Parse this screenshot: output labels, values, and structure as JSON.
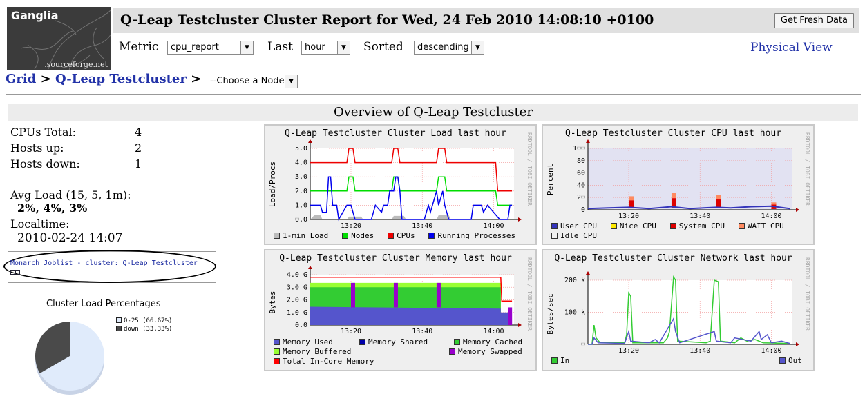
{
  "logo": {
    "name": "Ganglia",
    "sub": ".sourceforge.net"
  },
  "header": {
    "title": "Q-Leap Testcluster Cluster Report for Wed, 24 Feb 2010 14:08:10 +0100",
    "fresh_button": "Get Fresh Data"
  },
  "controls": {
    "metric_label": "Metric",
    "metric_value": "cpu_report",
    "last_label": "Last",
    "last_value": "hour",
    "sorted_label": "Sorted",
    "sorted_value": "descending",
    "physical_view": "Physical View"
  },
  "breadcrumb": {
    "grid": "Grid",
    "sep1": ">",
    "cluster": "Q-Leap Testcluster",
    "sep2": ">",
    "node_select": "--Choose a Node"
  },
  "overview": {
    "title": "Overview of Q-Leap Testcluster"
  },
  "stats": {
    "cpus_label": "CPUs Total:",
    "cpus_value": "4",
    "hosts_up_label": "Hosts up:",
    "hosts_up_value": "2",
    "hosts_down_label": "Hosts down:",
    "hosts_down_value": "1",
    "avg_load_label": "Avg Load (15, 5, 1m):",
    "avg_load_value": "2%, 4%, 3%",
    "localtime_label": "Localtime:",
    "localtime_value": "2010-02-24 14:07"
  },
  "joblist": {
    "text": "Monarch Joblist - cluster: Q-Leap Testcluster"
  },
  "cluster_load": {
    "title": "Cluster Load Percentages",
    "slices": [
      {
        "label": "0-25 (66.67%)",
        "percent": 66.67,
        "color": "#e0ebfb"
      },
      {
        "label": "down (33.33%)",
        "percent": 33.33,
        "color": "#4a4a4a"
      }
    ]
  },
  "rrd_credit": "RRDTOOL / TOBI OETIKER",
  "graphs": {
    "load": {
      "title": "Q-Leap Testcluster Cluster Load last hour",
      "ylabel": "Load/Procs",
      "yticks": [
        "5.0",
        "4.0",
        "3.0",
        "2.0",
        "1.0",
        "0.0"
      ],
      "xticks": [
        "13:20",
        "13:40",
        "14:00"
      ],
      "legend": [
        {
          "label": "1-min Load",
          "color": "#bbbbbb"
        },
        {
          "label": "Nodes",
          "color": "#00dd00"
        },
        {
          "label": "CPUs",
          "color": "#ee0000"
        },
        {
          "label": "Running Processes",
          "color": "#0000ee"
        }
      ]
    },
    "cpu": {
      "title": "Q-Leap Testcluster Cluster CPU last hour",
      "ylabel": "Percent",
      "yticks": [
        "100",
        "80",
        "60",
        "40",
        "20",
        "0"
      ],
      "xticks": [
        "13:20",
        "13:40",
        "14:00"
      ],
      "legend": [
        {
          "label": "User CPU",
          "color": "#3333bb"
        },
        {
          "label": "Nice CPU",
          "color": "#ffea00"
        },
        {
          "label": "System CPU",
          "color": "#dd0000"
        },
        {
          "label": "WAIT CPU",
          "color": "#ff8a60"
        },
        {
          "label": "Idle CPU",
          "color": "#e2e2f2"
        }
      ]
    },
    "memory": {
      "title": "Q-Leap Testcluster Cluster Memory last hour",
      "ylabel": "Bytes",
      "yticks": [
        "4.0 G",
        "3.0 G",
        "2.0 G",
        "1.0 G",
        "0.0"
      ],
      "xticks": [
        "13:20",
        "13:40",
        "14:00"
      ],
      "legend": [
        {
          "label": "Memory Used",
          "color": "#5555cc"
        },
        {
          "label": "Memory Shared",
          "color": "#0000aa"
        },
        {
          "label": "Memory Cached",
          "color": "#33cc33"
        },
        {
          "label": "Memory Buffered",
          "color": "#99ff33"
        },
        {
          "label": "Memory Swapped",
          "color": "#9900cc"
        },
        {
          "label": "Total In-Core Memory",
          "color": "#ff0000"
        }
      ]
    },
    "network": {
      "title": "Q-Leap Testcluster Cluster Network last hour",
      "ylabel": "Bytes/sec",
      "yticks": [
        "200 k",
        "100 k",
        "0"
      ],
      "xticks": [
        "13:20",
        "13:40",
        "14:00"
      ],
      "legend": [
        {
          "label": "In",
          "color": "#33cc33"
        },
        {
          "label": "Out",
          "color": "#5555cc"
        }
      ]
    }
  }
}
